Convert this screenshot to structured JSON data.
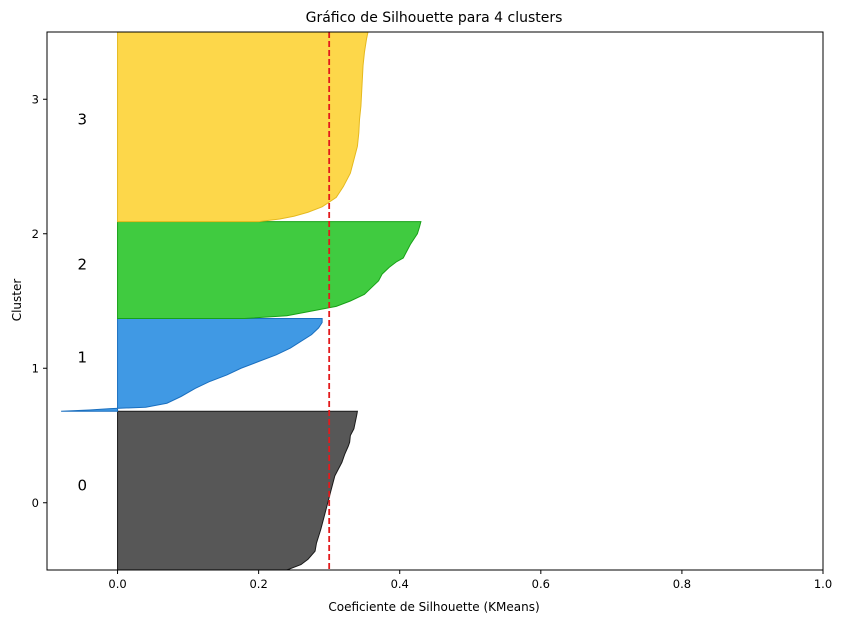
{
  "chart_data": {
    "type": "area",
    "title": "Gráfico de Silhouette para 4 clusters",
    "xlabel": "Coeficiente de Silhouette (KMeans)",
    "ylabel": "Cluster",
    "xlim": [
      -0.1,
      1.0
    ],
    "ylim": [
      -0.5,
      3.5
    ],
    "x_ticks": [
      {
        "value": 0.0,
        "label": "0.0"
      },
      {
        "value": 0.2,
        "label": "0.2"
      },
      {
        "value": 0.4,
        "label": "0.4"
      },
      {
        "value": 0.6,
        "label": "0.6"
      },
      {
        "value": 0.8,
        "label": "0.8"
      },
      {
        "value": 1.0,
        "label": "1.0"
      }
    ],
    "y_ticks": [
      {
        "value": 0,
        "label": "0"
      },
      {
        "value": 1,
        "label": "1"
      },
      {
        "value": 2,
        "label": "2"
      },
      {
        "value": 3,
        "label": "3"
      }
    ],
    "average_line": {
      "value": 0.3,
      "color": "#e31a1c",
      "style": "dashed"
    },
    "clusters": [
      {
        "label": "0",
        "label_x": -0.05,
        "label_y": 0.13,
        "color": "#3a3a3a",
        "edge": "#1a1a1a",
        "y_range": [
          -0.5,
          0.68
        ],
        "profile": [
          [
            -0.5,
            0.24
          ],
          [
            -0.46,
            0.26
          ],
          [
            -0.42,
            0.27
          ],
          [
            -0.36,
            0.28
          ],
          [
            -0.3,
            0.282
          ],
          [
            -0.2,
            0.288
          ],
          [
            -0.1,
            0.293
          ],
          [
            0.0,
            0.298
          ],
          [
            0.1,
            0.303
          ],
          [
            0.2,
            0.308
          ],
          [
            0.25,
            0.313
          ],
          [
            0.3,
            0.318
          ],
          [
            0.36,
            0.322
          ],
          [
            0.42,
            0.327
          ],
          [
            0.45,
            0.329
          ],
          [
            0.5,
            0.33
          ],
          [
            0.55,
            0.335
          ],
          [
            0.6,
            0.337
          ],
          [
            0.65,
            0.339
          ],
          [
            0.68,
            0.34
          ]
        ]
      },
      {
        "label": "1",
        "label_x": -0.05,
        "label_y": 1.08,
        "color": "#1f87df",
        "edge": "#1a6fbf",
        "y_range": [
          0.68,
          1.37
        ],
        "profile": [
          [
            0.68,
            -0.08
          ],
          [
            0.69,
            -0.04
          ],
          [
            0.7,
            -0.01
          ],
          [
            0.71,
            0.04
          ],
          [
            0.74,
            0.07
          ],
          [
            0.79,
            0.09
          ],
          [
            0.85,
            0.11
          ],
          [
            0.9,
            0.13
          ],
          [
            0.95,
            0.155
          ],
          [
            1.0,
            0.175
          ],
          [
            1.05,
            0.2
          ],
          [
            1.1,
            0.225
          ],
          [
            1.15,
            0.245
          ],
          [
            1.2,
            0.26
          ],
          [
            1.25,
            0.275
          ],
          [
            1.3,
            0.285
          ],
          [
            1.34,
            0.29
          ],
          [
            1.37,
            0.29
          ]
        ]
      },
      {
        "label": "2",
        "label_x": -0.05,
        "label_y": 1.77,
        "color": "#1ec21e",
        "edge": "#17a117",
        "y_range": [
          1.37,
          2.09
        ],
        "profile": [
          [
            1.37,
            0.18
          ],
          [
            1.39,
            0.24
          ],
          [
            1.42,
            0.27
          ],
          [
            1.46,
            0.31
          ],
          [
            1.5,
            0.33
          ],
          [
            1.55,
            0.35
          ],
          [
            1.6,
            0.36
          ],
          [
            1.65,
            0.37
          ],
          [
            1.7,
            0.375
          ],
          [
            1.75,
            0.385
          ],
          [
            1.79,
            0.395
          ],
          [
            1.82,
            0.405
          ],
          [
            1.87,
            0.41
          ],
          [
            1.92,
            0.415
          ],
          [
            1.96,
            0.42
          ],
          [
            2.0,
            0.425
          ],
          [
            2.05,
            0.428
          ],
          [
            2.09,
            0.43
          ]
        ]
      },
      {
        "label": "3",
        "label_x": -0.05,
        "label_y": 2.85,
        "color": "#fdd02a",
        "edge": "#e5b91e",
        "y_range": [
          2.09,
          3.5
        ],
        "profile": [
          [
            2.09,
            0.2
          ],
          [
            2.11,
            0.23
          ],
          [
            2.13,
            0.25
          ],
          [
            2.16,
            0.27
          ],
          [
            2.2,
            0.29
          ],
          [
            2.27,
            0.31
          ],
          [
            2.35,
            0.32
          ],
          [
            2.45,
            0.33
          ],
          [
            2.55,
            0.335
          ],
          [
            2.65,
            0.34
          ],
          [
            2.75,
            0.342
          ],
          [
            2.85,
            0.343
          ],
          [
            2.95,
            0.345
          ],
          [
            3.05,
            0.346
          ],
          [
            3.15,
            0.347
          ],
          [
            3.25,
            0.348
          ],
          [
            3.35,
            0.35
          ],
          [
            3.45,
            0.353
          ],
          [
            3.5,
            0.355
          ]
        ]
      }
    ]
  }
}
